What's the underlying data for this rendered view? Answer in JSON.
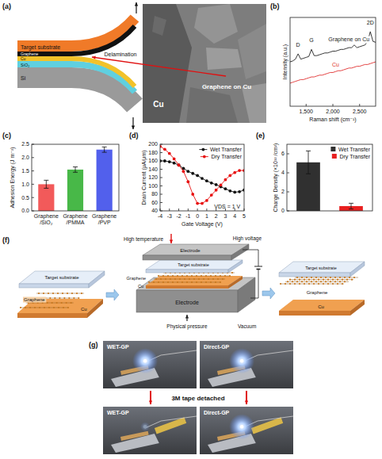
{
  "chart_data": [
    {
      "type": "line",
      "x_label": "Raman shift (cm⁻¹)",
      "y_label": "Intensity (a.u.)",
      "x": [
        1200,
        1250,
        1300,
        1350,
        1400,
        1450,
        1500,
        1550,
        1600,
        1650,
        1700,
        1750,
        1800,
        1850,
        1900,
        1950,
        2000,
        2050,
        2100,
        2150,
        2200,
        2250,
        2300,
        2350,
        2400,
        2450,
        2500,
        2550,
        2600,
        2650,
        2700,
        2750,
        2800
      ],
      "xlim": [
        1200,
        2800
      ],
      "xticks": [
        {
          "value": 1500,
          "label": "1,500"
        },
        {
          "value": 2000,
          "label": "2,000"
        },
        {
          "value": 2500,
          "label": "2,500"
        }
      ],
      "ylim": [
        0,
        10
      ],
      "tick_labels": "x",
      "series": [
        {
          "name": "Graphene on Cu",
          "color": "#222222",
          "values": [
            5.0,
            5.1,
            5.3,
            5.9,
            5.3,
            5.4,
            5.5,
            5.6,
            6.4,
            5.7,
            5.7,
            5.8,
            5.9,
            6.0,
            6.0,
            6.1,
            6.2,
            6.2,
            6.3,
            6.4,
            6.4,
            6.5,
            6.6,
            6.6,
            6.9,
            6.6,
            6.7,
            6.8,
            6.9,
            7.3,
            8.4,
            7.3,
            7.2
          ]
        },
        {
          "name": "Cu",
          "color": "#e03030",
          "values": [
            2.6,
            2.7,
            2.8,
            2.9,
            3.0,
            3.0,
            3.1,
            3.2,
            3.3,
            3.3,
            3.4,
            3.5,
            3.5,
            3.6,
            3.7,
            3.8,
            3.8,
            3.9,
            4.0,
            4.0,
            4.1,
            4.2,
            4.3,
            4.3,
            4.4,
            4.5,
            4.5,
            4.6,
            4.7,
            4.7,
            4.8,
            4.9,
            5.0
          ]
        }
      ],
      "annotations": [
        {
          "text": "D",
          "x": 1350,
          "y": 6.7
        },
        {
          "text": "G",
          "x": 1600,
          "y": 7.2
        },
        {
          "text": "2D",
          "x": 2700,
          "y": 9.2
        }
      ]
    },
    {
      "type": "bar",
      "y_label": "Adhesion Energy (J m⁻²)",
      "categories": [
        "Graphene /SiO₂",
        "Graphene /PMMA",
        "Graphene /PVP"
      ],
      "values": [
        1.0,
        1.55,
        2.3
      ],
      "errors": [
        0.15,
        0.1,
        0.1
      ],
      "colors": [
        "#f25a5a",
        "#48b848",
        "#5260ec"
      ],
      "ylim": [
        0,
        2.5
      ],
      "yticks": [
        {
          "value": 0,
          "label": "0.0"
        },
        0.5,
        {
          "value": 1,
          "label": "1.0"
        },
        1.5,
        {
          "value": 2,
          "label": "2.0"
        },
        2.5
      ]
    },
    {
      "type": "line",
      "x_label": "Gate Voltage (V)",
      "y_label": "Drain Current (μA/μm)",
      "x": [
        -4,
        -3.5,
        -3,
        -2.5,
        -2,
        -1.5,
        -1,
        -0.5,
        0,
        0.5,
        1,
        1.5,
        2,
        2.5,
        3,
        3.5,
        4,
        4.5,
        5
      ],
      "xlim": [
        -4,
        5
      ],
      "xticks": [
        -4,
        -3,
        -2,
        -1,
        0,
        1,
        2,
        3,
        4,
        5
      ],
      "ylim": [
        40,
        200
      ],
      "yticks": [
        40,
        60,
        80,
        100,
        120,
        140,
        160,
        180,
        200
      ],
      "marker": "circle",
      "legend": "upper right",
      "series": [
        {
          "name": "Wet Transfer",
          "color": "#111111",
          "values": [
            160,
            160,
            158,
            155,
            150,
            142,
            135,
            130,
            125,
            118,
            112,
            107,
            103,
            98,
            93,
            88,
            85,
            86,
            90
          ]
        },
        {
          "name": "Dry Transfer",
          "color": "#e81010",
          "values": [
            195,
            188,
            178,
            165,
            150,
            135,
            110,
            80,
            58,
            58,
            65,
            78,
            90,
            102,
            115,
            125,
            132,
            137,
            137
          ]
        }
      ],
      "annotations": [
        {
          "text": "VDS = 1 V",
          "x": 3.2,
          "y": 46
        }
      ]
    },
    {
      "type": "bar",
      "y_label": "Charge Density (×10¹² /cm²)",
      "categories": [
        null,
        null
      ],
      "series": [
        {
          "name": "Wet Transfer",
          "color": "#303030",
          "values": [
            5.1,
            null
          ],
          "errors": [
            1.2,
            null
          ]
        },
        {
          "name": "Dry Transfer",
          "color": "#e82020",
          "values": [
            null,
            0.5
          ],
          "errors": [
            null,
            0.3
          ]
        }
      ],
      "ylim": [
        0,
        7
      ],
      "yticks": [
        0,
        2,
        4,
        6
      ],
      "legend": "upper right",
      "tick_labels": "y"
    }
  ],
  "panel_labels": [
    "(a)",
    "(b)",
    "(c)",
    "(d)",
    "(e)",
    "(f)",
    "(g)"
  ],
  "schematic_a": {
    "layers": {
      "substrate": "Target substrate",
      "graphene": "Graphene",
      "cu": "Cu",
      "sio2": "SiO₂",
      "si": "Si"
    },
    "delamination": "Delamination",
    "sem": {
      "graphene": "Graphene on Cu",
      "cu": "Cu"
    }
  },
  "schematic_f": {
    "before": {
      "substrate": "Target substrate",
      "graphene": "Graphene",
      "cu": "Cu"
    },
    "process": {
      "temperature": "High temperature",
      "voltage": "High voltage",
      "electrode_top": "Electrode",
      "substrate": "Target substrate",
      "graphene": "Graphene",
      "cu": "Cu",
      "electrode_bottom": "Electrode",
      "pressure": "Physical pressure",
      "vacuum": "Vacuum"
    },
    "after": {
      "substrate": "Target substrate",
      "graphene": "Graphene",
      "cu": "Cu"
    }
  },
  "photos_g": {
    "before": [
      "WET-GP",
      "Direct-GP"
    ],
    "step": "3M tape detached",
    "after": [
      "WET-GP",
      "Direct-GP"
    ]
  }
}
